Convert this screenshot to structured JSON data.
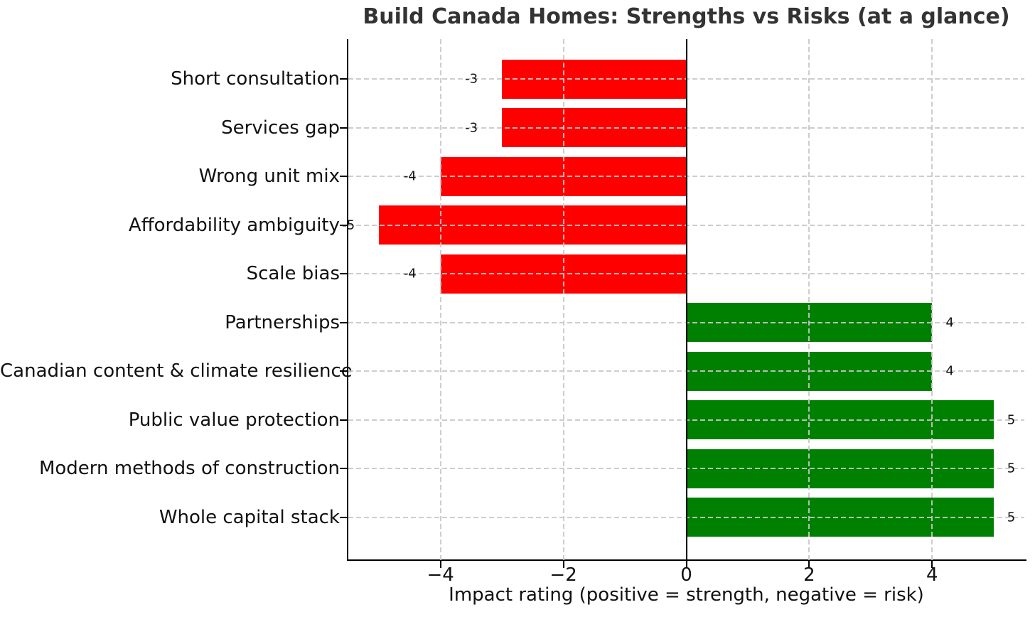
{
  "chart_data": {
    "type": "bar",
    "orientation": "horizontal",
    "title": "Build Canada Homes: Strengths vs Risks (at a glance)",
    "xlabel": "Impact rating (positive = strength, negative = risk)",
    "categories": [
      "Short consultation",
      "Services gap",
      "Wrong unit mix",
      "Affordability ambiguity",
      "Scale bias",
      "Partnerships",
      "Canadian content & climate resilience",
      "Public value protection",
      "Modern methods of construction",
      "Whole capital stack"
    ],
    "values": [
      -3,
      -3,
      -4,
      -5,
      -4,
      4,
      4,
      5,
      5,
      5
    ],
    "bar_labels": [
      "-3",
      "-3",
      "-4",
      "-5",
      "-4",
      "4",
      "4",
      "5",
      "5",
      "5"
    ],
    "xticks": {
      "values": [
        -4,
        -2,
        0,
        2,
        4
      ],
      "labels": [
        "−4",
        "−2",
        "0",
        "2",
        "4"
      ]
    },
    "xlim": [
      -5.5,
      5.5
    ],
    "ylim_padding_note": "10 category rows, bars 0.8 of row height",
    "grid": {
      "style": "dashed",
      "axes": "both",
      "on_top_of_bars": true
    },
    "zero_line": true,
    "legend": null,
    "colors": {
      "risk_bar": "#ff0000",
      "strength_bar": "#008000",
      "grid": "#c8c8c8",
      "zero_line": "#000000",
      "title_text": "#333333",
      "axis_text": "#111111",
      "background": "#ffffff"
    }
  }
}
